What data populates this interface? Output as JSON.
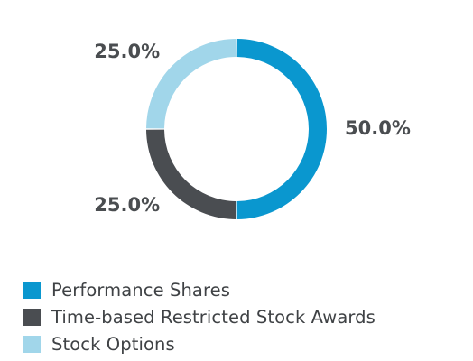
{
  "chart_data": {
    "type": "pie",
    "donut": true,
    "title": "",
    "categories": [
      "Performance Shares",
      "Time-based Restricted Stock Awards",
      "Stock Options"
    ],
    "values": [
      50.0,
      25.0,
      25.0
    ],
    "value_labels": [
      "50.0%",
      "25.0%",
      "25.0%"
    ],
    "colors": [
      "#0a97cf",
      "#4a4d51",
      "#a1d6ea"
    ],
    "legend_position": "bottom-left",
    "start_angle": "top, clockwise"
  },
  "legend": {
    "items": [
      {
        "label": "Performance Shares",
        "color": "#0a97cf"
      },
      {
        "label": "Time-based Restricted Stock Awards",
        "color": "#4a4d51"
      },
      {
        "label": "Stock Options",
        "color": "#a1d6ea"
      }
    ]
  }
}
